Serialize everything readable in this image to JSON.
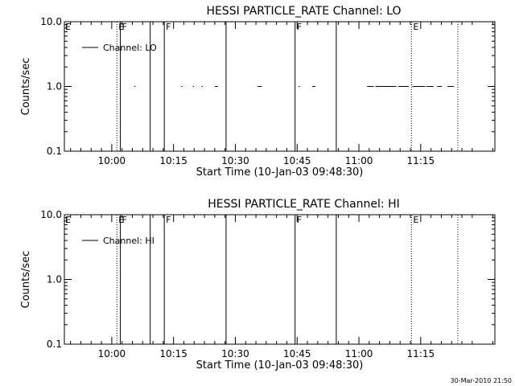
{
  "footer": "30-Mar-2010 21:50",
  "chart_data": [
    {
      "type": "line",
      "title": "HESSI PARTICLE_RATE Channel: LO",
      "xlabel": "Start Time (10-Jan-03 09:48:30)",
      "ylabel": "Counts/sec",
      "y_scale": "log",
      "ylim": [
        0.1,
        10.0
      ],
      "y_ticks": [
        "0.1",
        "1.0",
        "10.0"
      ],
      "xlim": [
        "09:48:30",
        "11:33:00"
      ],
      "x_ticks": [
        "10:00",
        "10:15",
        "10:30",
        "10:45",
        "11:00",
        "11:15"
      ],
      "legend": {
        "position": "top-left",
        "entries": [
          "Channel: LO"
        ]
      },
      "series": [
        {
          "name": "Channel: LO",
          "segments": [
            [
              "10:05:30",
              "10:05:40",
              1.0
            ],
            [
              "10:16:50",
              "10:17:00",
              1.0
            ],
            [
              "10:19:40",
              "10:19:50",
              1.0
            ],
            [
              "10:21:50",
              "10:22:00",
              1.0
            ],
            [
              "10:25:00",
              "10:25:40",
              1.0
            ],
            [
              "10:35:20",
              "10:36:20",
              1.0
            ],
            [
              "10:45:20",
              "10:45:30",
              1.0
            ],
            [
              "10:48:40",
              "10:49:20",
              1.0
            ],
            [
              "11:02:00",
              "11:03:30",
              1.0
            ],
            [
              "11:04:00",
              "11:09:00",
              1.0
            ],
            [
              "11:09:30",
              "11:12:00",
              1.0
            ],
            [
              "11:13:00",
              "11:16:00",
              1.0
            ],
            [
              "11:16:20",
              "11:18:00",
              1.0
            ],
            [
              "11:19:00",
              "11:20:00",
              1.0
            ],
            [
              "11:21:30",
              "11:23:00",
              1.0
            ]
          ]
        }
      ],
      "event_lines": [
        {
          "time": "10:01:15",
          "style": "dotted",
          "label": "E"
        },
        {
          "time": "10:02:05",
          "style": "solid",
          "label": "F"
        },
        {
          "time": "10:09:20",
          "style": "solid",
          "label": ""
        },
        {
          "time": "10:12:45",
          "style": "solid",
          "label": "F"
        },
        {
          "time": "10:27:45",
          "style": "solid",
          "label": ""
        },
        {
          "time": "10:44:30",
          "style": "solid",
          "label": "F"
        },
        {
          "time": "10:54:30",
          "style": "solid",
          "label": ""
        },
        {
          "time": "11:12:45",
          "style": "dotted",
          "label": "E"
        },
        {
          "time": "11:24:00",
          "style": "dotted",
          "label": ""
        }
      ],
      "left_edge_label": "E"
    },
    {
      "type": "line",
      "title": "HESSI PARTICLE_RATE Channel: HI",
      "xlabel": "Start Time (10-Jan-03 09:48:30)",
      "ylabel": "Counts/sec",
      "y_scale": "log",
      "ylim": [
        0.1,
        10.0
      ],
      "y_ticks": [
        "0.1",
        "1.0",
        "10.0"
      ],
      "xlim": [
        "09:48:30",
        "11:33:00"
      ],
      "x_ticks": [
        "10:00",
        "10:15",
        "10:30",
        "10:45",
        "11:00",
        "11:15"
      ],
      "legend": {
        "position": "top-left",
        "entries": [
          "Channel: HI"
        ]
      },
      "series": [
        {
          "name": "Channel: HI",
          "segments": []
        }
      ],
      "event_lines": [
        {
          "time": "10:01:15",
          "style": "dotted",
          "label": "E"
        },
        {
          "time": "10:02:05",
          "style": "solid",
          "label": "F"
        },
        {
          "time": "10:09:20",
          "style": "solid",
          "label": ""
        },
        {
          "time": "10:12:45",
          "style": "solid",
          "label": "F"
        },
        {
          "time": "10:27:45",
          "style": "solid",
          "label": ""
        },
        {
          "time": "10:44:30",
          "style": "solid",
          "label": "F"
        },
        {
          "time": "10:54:30",
          "style": "solid",
          "label": ""
        },
        {
          "time": "11:12:45",
          "style": "dotted",
          "label": "E"
        },
        {
          "time": "11:24:00",
          "style": "dotted",
          "label": ""
        }
      ],
      "left_edge_label": "E"
    }
  ]
}
